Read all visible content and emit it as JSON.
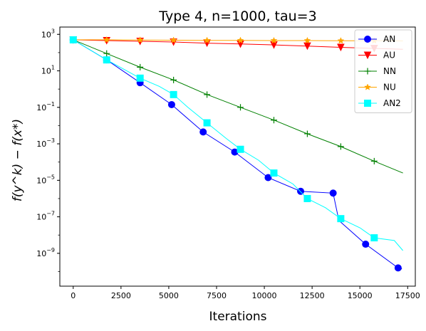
{
  "chart_data": {
    "type": "line",
    "title": "Type 4, n=1000, tau=3",
    "xlabel": "Iterations",
    "ylabel": "f(y^k) − f(x*)",
    "yscale": "log",
    "xlim": [
      -700,
      17900
    ],
    "ylim_log10": [
      -10.8,
      3.4
    ],
    "xticks": [
      0,
      2500,
      5000,
      7500,
      10000,
      12500,
      15000,
      17500
    ],
    "xtick_labels": [
      "0",
      "2500",
      "5000",
      "7500",
      "10000",
      "12500",
      "15000",
      "17500"
    ],
    "ytick_exponents": [
      3,
      1,
      -1,
      -3,
      -5,
      -7,
      -9
    ],
    "ytick_base": "10",
    "grid": false,
    "legend_position": "top-right",
    "series": [
      {
        "name": "AN",
        "color": "#0000ff",
        "marker": "circle",
        "line": [
          [
            0,
            2.7
          ],
          [
            1750,
            1.6
          ],
          [
            3500,
            0.35
          ],
          [
            5150,
            -0.85
          ],
          [
            6800,
            -2.35
          ],
          [
            8450,
            -3.45
          ],
          [
            10200,
            -4.85
          ],
          [
            11900,
            -5.6
          ],
          [
            13600,
            -5.7
          ],
          [
            13900,
            -7.2
          ],
          [
            15300,
            -8.5
          ],
          [
            17000,
            -9.8
          ],
          [
            17200,
            -9.85
          ]
        ],
        "markers": [
          [
            0,
            2.7
          ],
          [
            1750,
            1.6
          ],
          [
            3500,
            0.35
          ],
          [
            5150,
            -0.85
          ],
          [
            6800,
            -2.35
          ],
          [
            8450,
            -3.45
          ],
          [
            10200,
            -4.85
          ],
          [
            11900,
            -5.6
          ],
          [
            13600,
            -5.7
          ],
          [
            15300,
            -8.5
          ],
          [
            17000,
            -9.8
          ]
        ]
      },
      {
        "name": "AU",
        "color": "#ff0000",
        "marker": "triangle_down",
        "line": [
          [
            0,
            2.7
          ],
          [
            1750,
            2.66
          ],
          [
            3500,
            2.62
          ],
          [
            5250,
            2.58
          ],
          [
            7000,
            2.52
          ],
          [
            8750,
            2.47
          ],
          [
            10500,
            2.42
          ],
          [
            12250,
            2.36
          ],
          [
            14000,
            2.29
          ],
          [
            15750,
            2.23
          ],
          [
            17250,
            2.18
          ]
        ],
        "markers": [
          [
            0,
            2.7
          ],
          [
            1750,
            2.66
          ],
          [
            3500,
            2.62
          ],
          [
            5250,
            2.58
          ],
          [
            7000,
            2.52
          ],
          [
            8750,
            2.47
          ],
          [
            10500,
            2.42
          ],
          [
            12250,
            2.36
          ],
          [
            14000,
            2.29
          ],
          [
            15750,
            2.23
          ]
        ]
      },
      {
        "name": "NN",
        "color": "#008000",
        "marker": "plus",
        "line": [
          [
            0,
            2.7
          ],
          [
            1750,
            1.95
          ],
          [
            3500,
            1.2
          ],
          [
            5250,
            0.5
          ],
          [
            7000,
            -0.3
          ],
          [
            8750,
            -1.0
          ],
          [
            10500,
            -1.7
          ],
          [
            12250,
            -2.45
          ],
          [
            14000,
            -3.15
          ],
          [
            15750,
            -3.95
          ],
          [
            17250,
            -4.6
          ]
        ],
        "markers": [
          [
            0,
            2.7
          ],
          [
            1750,
            1.95
          ],
          [
            3500,
            1.2
          ],
          [
            5250,
            0.5
          ],
          [
            7000,
            -0.3
          ],
          [
            8750,
            -1.0
          ],
          [
            10500,
            -1.7
          ],
          [
            12250,
            -2.45
          ],
          [
            14000,
            -3.15
          ],
          [
            15750,
            -3.95
          ]
        ]
      },
      {
        "name": "NU",
        "color": "#ffa500",
        "marker": "star",
        "line": [
          [
            0,
            2.7
          ],
          [
            1750,
            2.7
          ],
          [
            3500,
            2.69
          ],
          [
            5250,
            2.68
          ],
          [
            7000,
            2.67
          ],
          [
            8750,
            2.67
          ],
          [
            10500,
            2.66
          ],
          [
            12250,
            2.66
          ],
          [
            14000,
            2.65
          ],
          [
            15750,
            2.65
          ],
          [
            17250,
            2.64
          ]
        ],
        "markers": [
          [
            0,
            2.7
          ],
          [
            1750,
            2.7
          ],
          [
            3500,
            2.69
          ],
          [
            5250,
            2.68
          ],
          [
            7000,
            2.67
          ],
          [
            8750,
            2.67
          ],
          [
            10500,
            2.66
          ],
          [
            12250,
            2.66
          ],
          [
            14000,
            2.65
          ],
          [
            15750,
            2.65
          ]
        ]
      },
      {
        "name": "AN2",
        "color": "#00ffff",
        "marker": "square",
        "line": [
          [
            0,
            2.7
          ],
          [
            1750,
            1.6
          ],
          [
            3500,
            0.6
          ],
          [
            4500,
            0.15
          ],
          [
            5250,
            -0.3
          ],
          [
            6000,
            -1.0
          ],
          [
            7000,
            -1.85
          ],
          [
            8000,
            -2.7
          ],
          [
            8750,
            -3.3
          ],
          [
            9700,
            -3.9
          ],
          [
            10500,
            -4.6
          ],
          [
            11500,
            -5.2
          ],
          [
            12250,
            -6.0
          ],
          [
            13200,
            -6.5
          ],
          [
            14000,
            -7.1
          ],
          [
            15000,
            -7.6
          ],
          [
            15750,
            -8.15
          ],
          [
            16800,
            -8.3
          ],
          [
            17250,
            -8.85
          ]
        ],
        "markers": [
          [
            0,
            2.7
          ],
          [
            1750,
            1.6
          ],
          [
            3500,
            0.6
          ],
          [
            5250,
            -0.3
          ],
          [
            7000,
            -1.85
          ],
          [
            8750,
            -3.3
          ],
          [
            10500,
            -4.6
          ],
          [
            12250,
            -6.0
          ],
          [
            14000,
            -7.1
          ],
          [
            15750,
            -8.15
          ]
        ]
      }
    ]
  }
}
